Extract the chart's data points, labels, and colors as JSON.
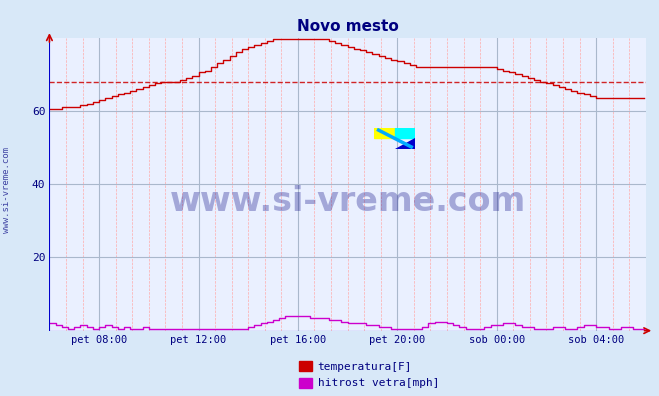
{
  "title": "Novo mesto",
  "title_color": "#000080",
  "bg_color": "#d8e8f8",
  "plot_bg_color": "#eaf0ff",
  "ylim": [
    0,
    80
  ],
  "yticks": [
    20,
    40,
    60
  ],
  "xlim": [
    0,
    288
  ],
  "xlabel_ticks": [
    24,
    72,
    120,
    168,
    216,
    264
  ],
  "xlabel_labels": [
    "pet 08:00",
    "pet 12:00",
    "pet 16:00",
    "pet 20:00",
    "sob 00:00",
    "sob 04:00"
  ],
  "grid_color_major": "#aab8cc",
  "grid_color_minor": "#ffaaaa",
  "watermark_text": "www.si-vreme.com",
  "watermark_color": "#000080",
  "watermark_alpha": 0.3,
  "legend_labels": [
    "temperatura[F]",
    "hitrost vetra[mph]"
  ],
  "legend_colors": [
    "#cc0000",
    "#cc00cc"
  ],
  "avg_line_color": "#cc0000",
  "avg_line_value": 68.0,
  "temp_color": "#cc0000",
  "wind_color": "#cc00cc",
  "side_label": "www.si-vreme.com",
  "side_label_color": "#000080",
  "temp_data": [
    60.5,
    60.5,
    61.0,
    61.0,
    61.0,
    61.5,
    62.0,
    62.5,
    63.0,
    63.5,
    64.0,
    64.5,
    65.0,
    65.5,
    66.0,
    66.5,
    67.0,
    67.5,
    68.0,
    68.0,
    68.0,
    68.5,
    69.0,
    69.5,
    70.5,
    71.0,
    72.0,
    73.0,
    74.0,
    75.0,
    76.0,
    77.0,
    77.5,
    78.0,
    78.5,
    79.0,
    79.5,
    79.5,
    79.5,
    79.5,
    79.5,
    79.5,
    79.5,
    79.5,
    79.5,
    79.0,
    78.5,
    78.0,
    77.5,
    77.0,
    76.5,
    76.0,
    75.5,
    75.0,
    74.5,
    74.0,
    73.5,
    73.0,
    72.5,
    72.0,
    72.0,
    72.0,
    72.0,
    72.0,
    72.0,
    72.0,
    72.0,
    72.0,
    72.0,
    72.0,
    72.0,
    72.0,
    71.5,
    71.0,
    70.5,
    70.0,
    69.5,
    69.0,
    68.5,
    68.0,
    67.5,
    67.0,
    66.5,
    66.0,
    65.5,
    65.0,
    64.5,
    64.0,
    63.5,
    63.5,
    63.5,
    63.5,
    63.5,
    63.5,
    63.5,
    63.5
  ],
  "wind_data": [
    2.0,
    1.5,
    1.0,
    0.5,
    1.0,
    1.5,
    1.0,
    0.5,
    1.0,
    1.5,
    1.0,
    0.5,
    1.0,
    0.5,
    0.5,
    1.0,
    0.5,
    0.5,
    0.5,
    0.5,
    0.5,
    0.5,
    0.5,
    0.5,
    0.5,
    0.5,
    0.5,
    0.5,
    0.5,
    0.5,
    0.5,
    0.5,
    1.0,
    1.5,
    2.0,
    2.5,
    3.0,
    3.5,
    4.0,
    4.0,
    4.0,
    4.0,
    3.5,
    3.5,
    3.5,
    3.0,
    3.0,
    2.5,
    2.0,
    2.0,
    2.0,
    1.5,
    1.5,
    1.0,
    1.0,
    0.5,
    0.5,
    0.5,
    0.5,
    0.5,
    1.0,
    2.0,
    2.5,
    2.5,
    2.0,
    1.5,
    1.0,
    0.5,
    0.5,
    0.5,
    1.0,
    1.5,
    1.5,
    2.0,
    2.0,
    1.5,
    1.0,
    1.0,
    0.5,
    0.5,
    0.5,
    1.0,
    1.0,
    0.5,
    0.5,
    1.0,
    1.5,
    1.5,
    1.0,
    1.0,
    0.5,
    0.5,
    1.0,
    1.0,
    0.5,
    0.5
  ]
}
